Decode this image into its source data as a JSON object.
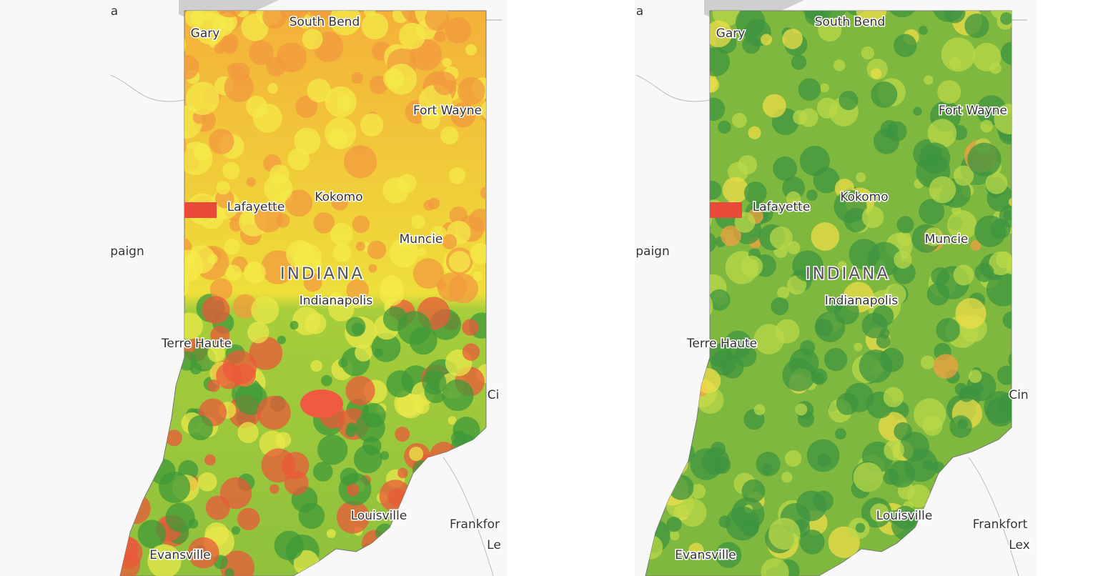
{
  "maps": [
    {
      "labels": [
        "a",
        "Gary",
        "South Bend",
        "Fort Wayne",
        "Lafayette",
        "Kokomo",
        "Muncie",
        "paign",
        "INDIANA",
        "Indianapolis",
        "Terre Haute",
        "Ci",
        "Louisville",
        "Frankfor",
        "Le",
        "Evansville"
      ]
    },
    {
      "labels": [
        "a",
        "Gary",
        "South Bend",
        "Fort Wayne",
        "Lafayette",
        "Kokomo",
        "Muncie",
        "paign",
        "INDIANA",
        "Indianapolis",
        "Terre Haute",
        "Cin",
        "Louisville",
        "Frankfort",
        "Lex",
        "Evansville"
      ]
    }
  ]
}
